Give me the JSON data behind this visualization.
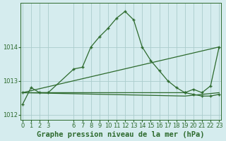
{
  "bg_color": "#d5ecee",
  "grid_color": "#aacccc",
  "line_color": "#2d6a2d",
  "series1_x": [
    0,
    1,
    2,
    3,
    6,
    7,
    8,
    9,
    10,
    11,
    12,
    13,
    14,
    15,
    16,
    17,
    18,
    19,
    20,
    21,
    22,
    23
  ],
  "series1_y": [
    1012.3,
    1012.8,
    1012.65,
    1012.65,
    1013.35,
    1013.4,
    1014.0,
    1014.3,
    1014.55,
    1014.85,
    1015.05,
    1014.8,
    1014.0,
    1013.6,
    1013.3,
    1013.0,
    1012.8,
    1012.65,
    1012.6,
    1012.55,
    1012.55,
    1012.6
  ],
  "series2_x": [
    0,
    23
  ],
  "series2_y": [
    1012.65,
    1014.0
  ],
  "series3_x": [
    0,
    19,
    20,
    21,
    22,
    23
  ],
  "series3_y": [
    1012.65,
    1012.65,
    1012.75,
    1012.65,
    1012.85,
    1014.0
  ],
  "series4_x": [
    0,
    19,
    23
  ],
  "series4_y": [
    1012.65,
    1012.55,
    1012.65
  ],
  "yticks": [
    1012,
    1013,
    1014
  ],
  "xticks": [
    0,
    1,
    2,
    3,
    6,
    7,
    8,
    9,
    10,
    11,
    12,
    13,
    14,
    15,
    16,
    17,
    18,
    19,
    20,
    21,
    22,
    23
  ],
  "xlim": [
    -0.2,
    23.2
  ],
  "ylim": [
    1011.85,
    1015.3
  ],
  "xlabel": "Graphe pression niveau de la mer (hPa)",
  "xlabel_fontsize": 7.5,
  "tick_fontsize": 6.0
}
